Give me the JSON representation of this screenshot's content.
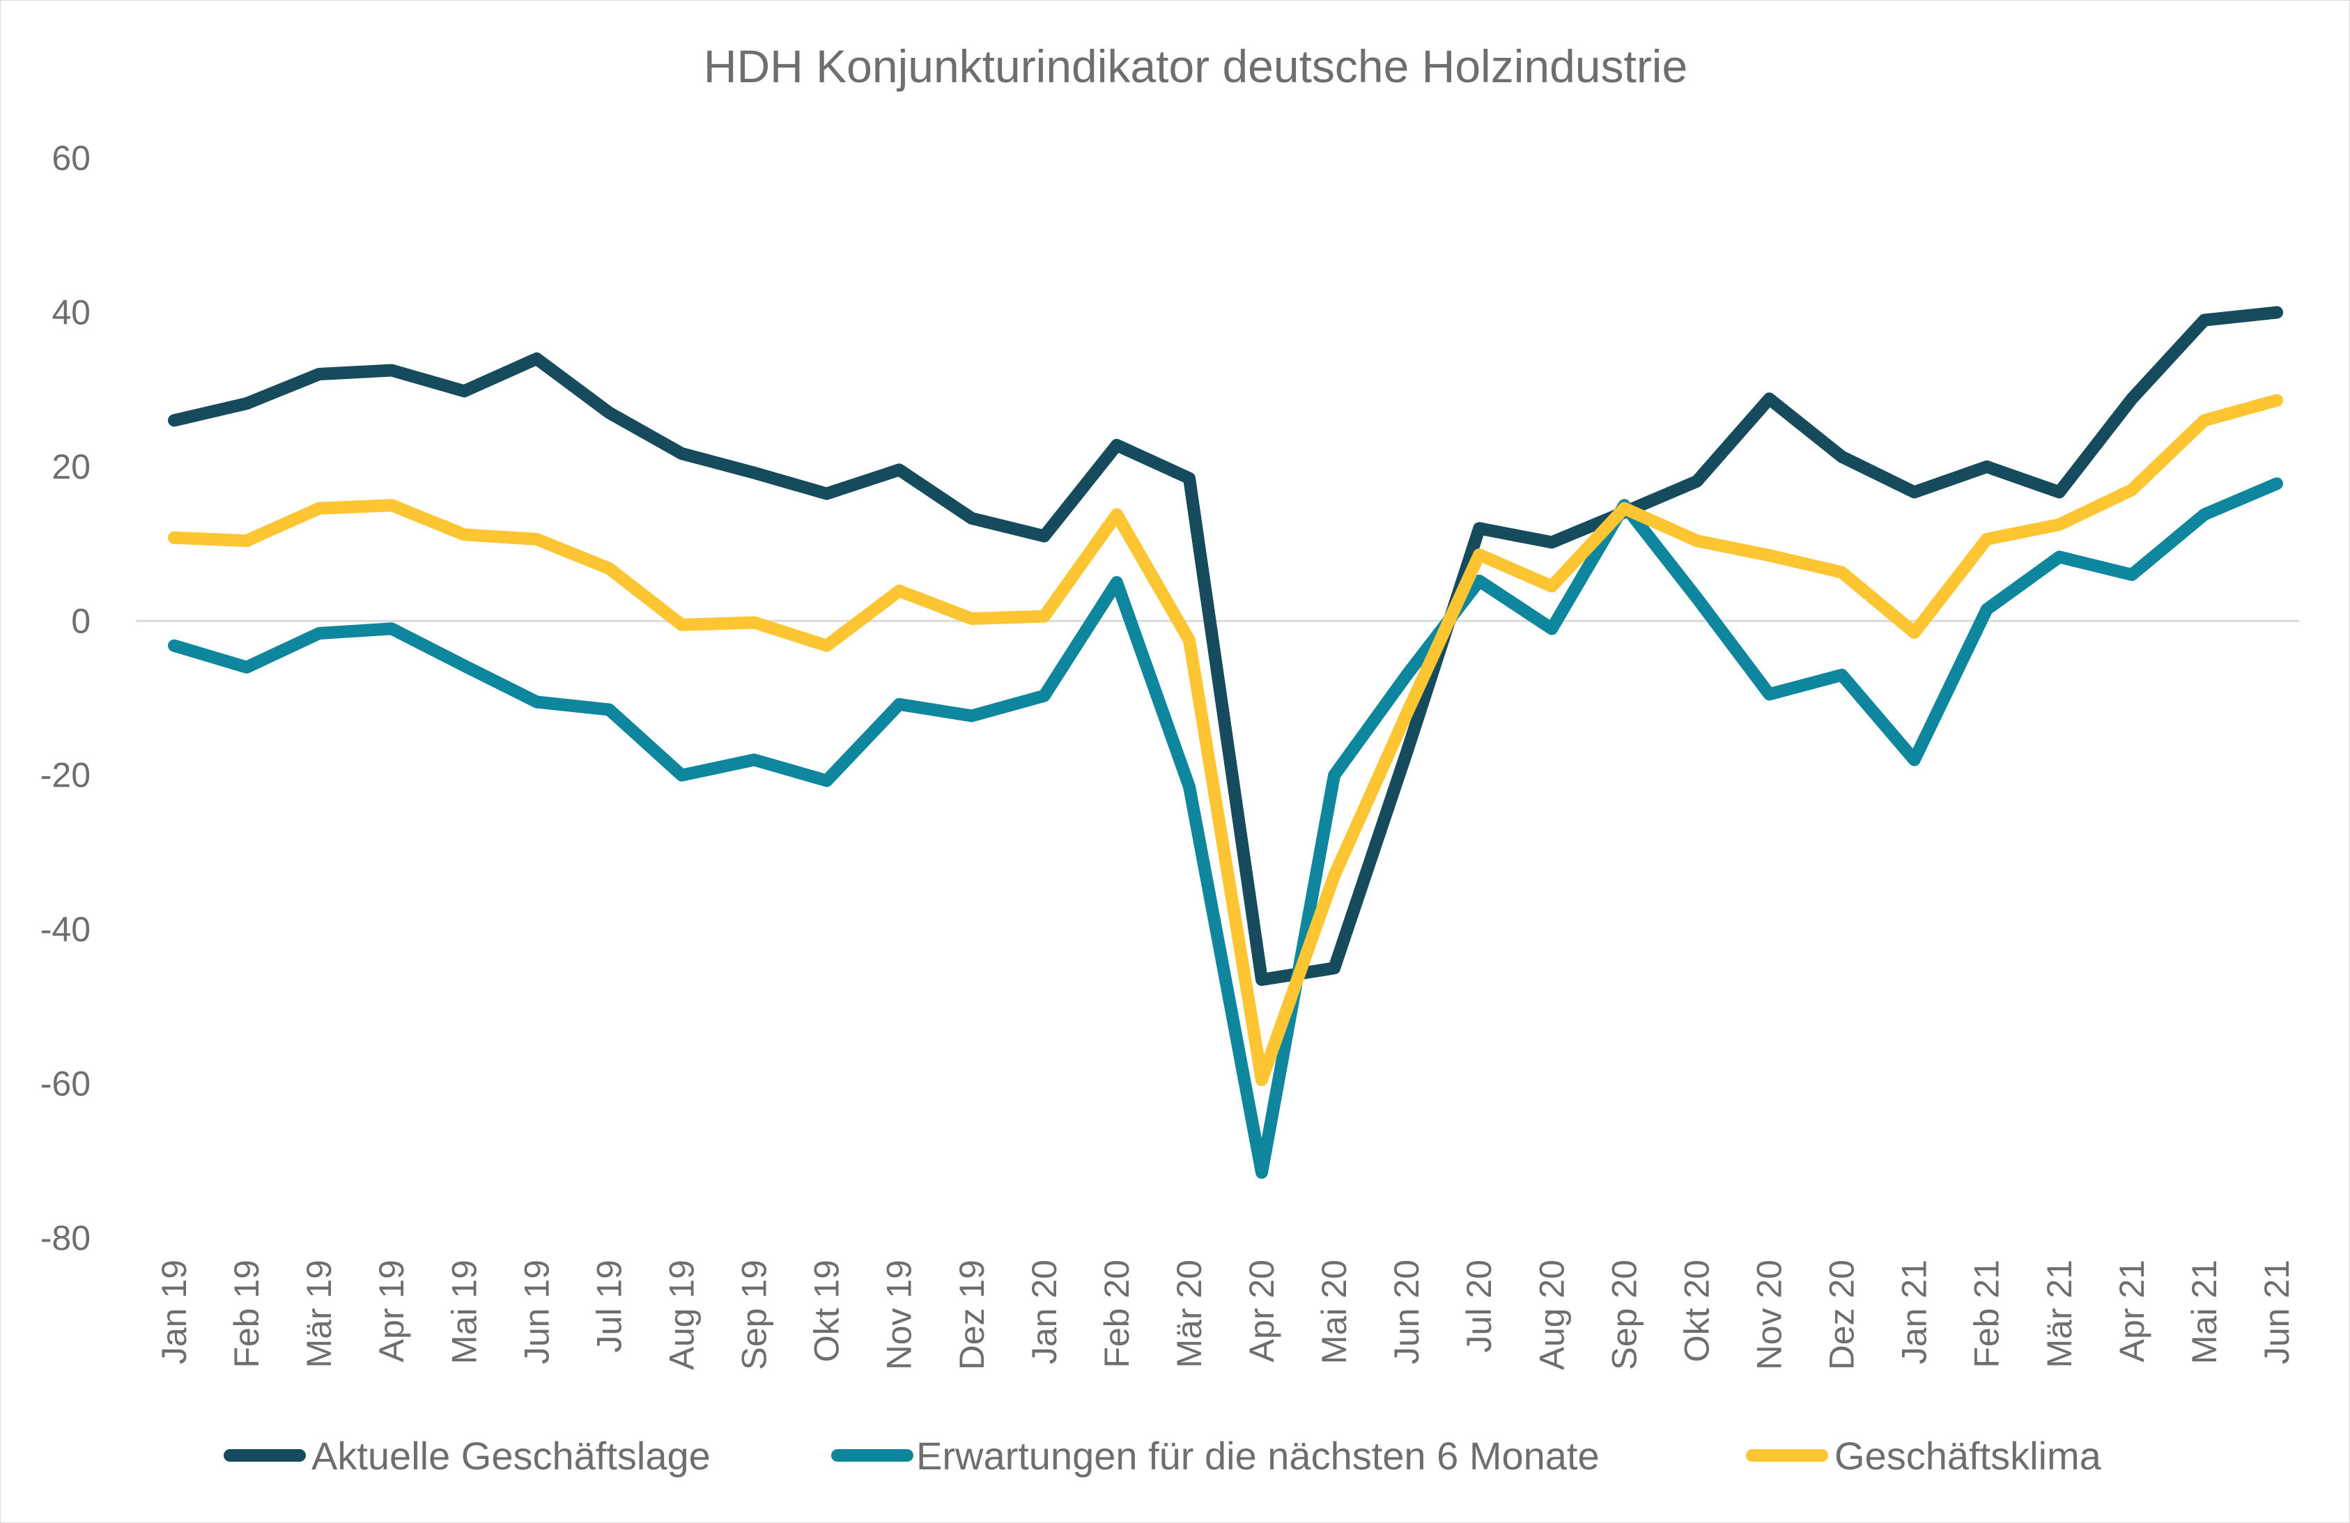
{
  "chart_data": {
    "type": "line",
    "title": "HDH Konjunkturindikator deutsche Holzindustrie",
    "xlabel": "",
    "ylabel": "",
    "ylim": [
      -80,
      60
    ],
    "yticks": [
      60,
      40,
      20,
      0,
      -20,
      -40,
      -60,
      -80
    ],
    "grid": false,
    "zero_line": true,
    "legend_position": "bottom",
    "categories": [
      "Jan 19",
      "Feb 19",
      "Mär 19",
      "Apr 19",
      "Mai 19",
      "Jun 19",
      "Jul 19",
      "Aug 19",
      "Sep 19",
      "Okt 19",
      "Nov 19",
      "Dez 19",
      "Jan 20",
      "Feb 20",
      "Mär 20",
      "Apr 20",
      "Mai 20",
      "Jun 20",
      "Jul 20",
      "Aug 20",
      "Sep 20",
      "Okt 20",
      "Nov 20",
      "Dez 20",
      "Jan 21",
      "Feb 21",
      "Mär 21",
      "Apr 21",
      "Mai 21",
      "Jun 21"
    ],
    "series": [
      {
        "name": "Aktuelle Geschäftslage",
        "color": "#154b5c",
        "values": [
          26,
          28.2,
          32,
          32.5,
          29.8,
          34,
          27,
          21.7,
          19.2,
          16.5,
          19.6,
          13.3,
          11,
          22.8,
          18.5,
          -46.5,
          -45,
          -17,
          12,
          10.2,
          14.1,
          18.1,
          28.8,
          21.3,
          16.7,
          20,
          16.7,
          28.8,
          39,
          40
        ]
      },
      {
        "name": "Erwartungen für die nächsten 6 Monate",
        "color": "#0e869e",
        "values": [
          -3.2,
          -6,
          -1.6,
          -1,
          -5.8,
          -10.5,
          -11.5,
          -20,
          -18,
          -20.7,
          -10.8,
          -12.3,
          -9.7,
          5,
          -21.5,
          -71.5,
          -20,
          -7,
          5.2,
          -1,
          15,
          3,
          -9.5,
          -7,
          -18,
          1.5,
          8.3,
          6,
          13.8,
          17.8
        ]
      },
      {
        "name": "Geschäftsklima",
        "color": "#fcc531",
        "values": [
          10.8,
          10.4,
          14.6,
          15,
          11.2,
          10.6,
          6.8,
          -0.5,
          -0.2,
          -3.2,
          3.9,
          0.3,
          0.6,
          13.8,
          -2.5,
          -59.5,
          -33,
          -12,
          8.6,
          4.5,
          14.6,
          10.4,
          8.5,
          6.3,
          -1.5,
          10.6,
          12.5,
          17,
          26,
          28.6
        ]
      }
    ]
  }
}
